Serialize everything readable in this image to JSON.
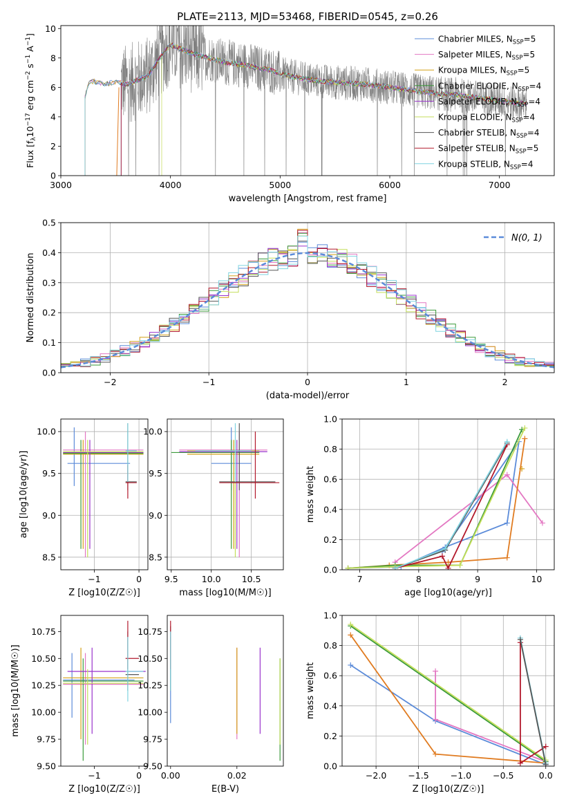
{
  "title": "PLATE=2113, MJD=53468, FIBERID=0545, z=0.26",
  "colors": {
    "Chabrier MILES": "#5b8bd9",
    "Salpeter MILES": "#e377c2",
    "Kroupa MILES": "#d4a017",
    "Chabrier ELODIE": "#3a9a3a",
    "Salpeter ELODIE": "#9932cc",
    "Kroupa ELODIE": "#c4de5a",
    "Chabrier STELIB": "#555555",
    "Salpeter STELIB": "#b2182b",
    "Kroupa STELIB": "#7fd3e0",
    "orange": "#e07b20",
    "gaussian": "#5b8bd9"
  },
  "chart_data": [
    {
      "id": "spectrum",
      "type": "line",
      "title": "PLATE=2113, MJD=53468, FIBERID=0545, z=0.26",
      "xlabel": "wavelength [Angstrom, rest frame]",
      "ylabel": "Flux [f_λ 10^-17 erg cm^-2 s^-1 A^-1]",
      "xlim": [
        3000,
        7500
      ],
      "ylim": [
        0,
        10.2
      ],
      "xticks": [
        3000,
        4000,
        5000,
        6000,
        7000
      ],
      "yticks": [
        0,
        2,
        4,
        6,
        8,
        10
      ],
      "legend": [
        {
          "label": "Chabrier MILES, N",
          "sub": "SSP",
          "suffix": "=5"
        },
        {
          "label": "Salpeter MILES, N",
          "sub": "SSP",
          "suffix": "=5"
        },
        {
          "label": "Kroupa MILES, N",
          "sub": "SSP",
          "suffix": "=5"
        },
        {
          "label": "Chabrier ELODIE, N",
          "sub": "SSP",
          "suffix": "=4"
        },
        {
          "label": "Salpeter ELODIE, N",
          "sub": "SSP",
          "suffix": "=4"
        },
        {
          "label": "Kroupa ELODIE, N",
          "sub": "SSP",
          "suffix": "=4"
        },
        {
          "label": "Chabrier STELIB, N",
          "sub": "SSP",
          "suffix": "=4"
        },
        {
          "label": "Salpeter STELIB, N",
          "sub": "SSP",
          "suffix": "=5"
        },
        {
          "label": "Kroupa STELIB, N",
          "sub": "SSP",
          "suffix": "=4"
        }
      ],
      "legend_placement": "right",
      "model_continuum": {
        "x": [
          3220,
          3250,
          3300,
          3400,
          3500,
          3600,
          3700,
          3800,
          3900,
          4000,
          4100,
          4200,
          4300,
          4400,
          4500,
          4600,
          4700,
          4800,
          4900,
          5000,
          5200,
          5400,
          5600,
          5800,
          6000,
          6200,
          6400,
          6600,
          6800,
          7000,
          7200
        ],
        "y": [
          5.3,
          6.3,
          6.4,
          6.2,
          6.4,
          6.2,
          6.5,
          6.8,
          8.0,
          8.9,
          8.6,
          8.3,
          8.1,
          7.9,
          7.7,
          7.6,
          7.5,
          7.3,
          7.2,
          6.9,
          6.6,
          6.4,
          6.3,
          6.2,
          6.0,
          5.8,
          5.6,
          5.5,
          5.3,
          5.1,
          4.9
        ]
      },
      "observed_range": [
        3550,
        7250
      ],
      "grid": false
    },
    {
      "id": "residuals",
      "type": "histogram",
      "xlabel": "(data-model)/error",
      "ylabel": "Normed distribution",
      "xlim": [
        -2.5,
        2.5
      ],
      "ylim": [
        0,
        0.5
      ],
      "xticks": [
        -2,
        -1,
        0,
        1,
        2
      ],
      "yticks": [
        0.0,
        0.1,
        0.2,
        0.3,
        0.4,
        0.5
      ],
      "legend": "N(0, 1)",
      "legend_placement": "top-right",
      "bin_width": 0.1,
      "grid": true
    },
    {
      "id": "age-vs-Z",
      "type": "errorbar",
      "xlabel": "Z [log10(Z/Z☉)]",
      "ylabel": "age [log10(age/yr)]",
      "xlim": [
        -1.75,
        0.2
      ],
      "ylim": [
        8.35,
        10.15
      ],
      "xticks": [
        -1,
        0
      ],
      "yticks": [
        8.5,
        9.0,
        9.5,
        10.0
      ],
      "grid": true
    },
    {
      "id": "age-vs-mass",
      "type": "errorbar",
      "xlabel": "mass [log10(M/M☉)]",
      "ylabel": "",
      "xlim": [
        9.45,
        10.9
      ],
      "ylim": [
        8.35,
        10.15
      ],
      "xticks": [
        9.5,
        10.0,
        10.5
      ],
      "yticks": [
        8.5,
        9.0,
        9.5,
        10.0
      ],
      "grid": true
    },
    {
      "id": "massweight-vs-age",
      "type": "line",
      "xlabel": "age [log10(age/yr)]",
      "ylabel": "mass weight",
      "xlim": [
        6.7,
        10.3
      ],
      "ylim": [
        0,
        1
      ],
      "xticks": [
        7,
        8,
        9,
        10
      ],
      "yticks": [
        0.0,
        0.2,
        0.4,
        0.6,
        0.8,
        1.0
      ],
      "grid": true
    },
    {
      "id": "mass-vs-Z",
      "type": "errorbar",
      "xlabel": "Z [log10(Z/Z☉)]",
      "ylabel": "mass [log10(M/M☉)]",
      "xlim": [
        -1.75,
        0.2
      ],
      "ylim": [
        9.5,
        10.9
      ],
      "xticks": [
        -1,
        0
      ],
      "yticks": [
        9.5,
        9.75,
        10.0,
        10.25,
        10.5,
        10.75
      ],
      "grid": false
    },
    {
      "id": "mass-vs-EBV",
      "type": "errorbar",
      "xlabel": "E(B-V)",
      "ylabel": "",
      "xlim": [
        -0.001,
        0.034
      ],
      "ylim": [
        9.5,
        10.9
      ],
      "xticks": [
        0.0,
        0.02
      ],
      "yticks": [
        9.5,
        9.75,
        10.0,
        10.25,
        10.5,
        10.75
      ],
      "grid": false
    },
    {
      "id": "massweight-vs-Z",
      "type": "line",
      "xlabel": "Z [log10(Z/Z☉)]",
      "ylabel": "mass weight",
      "xlim": [
        -2.4,
        0.1
      ],
      "ylim": [
        0,
        1
      ],
      "xticks": [
        -2.0,
        -1.5,
        -1.0,
        -0.5,
        0.0
      ],
      "yticks": [
        0.0,
        0.2,
        0.4,
        0.6,
        0.8,
        1.0
      ],
      "grid": true
    }
  ]
}
